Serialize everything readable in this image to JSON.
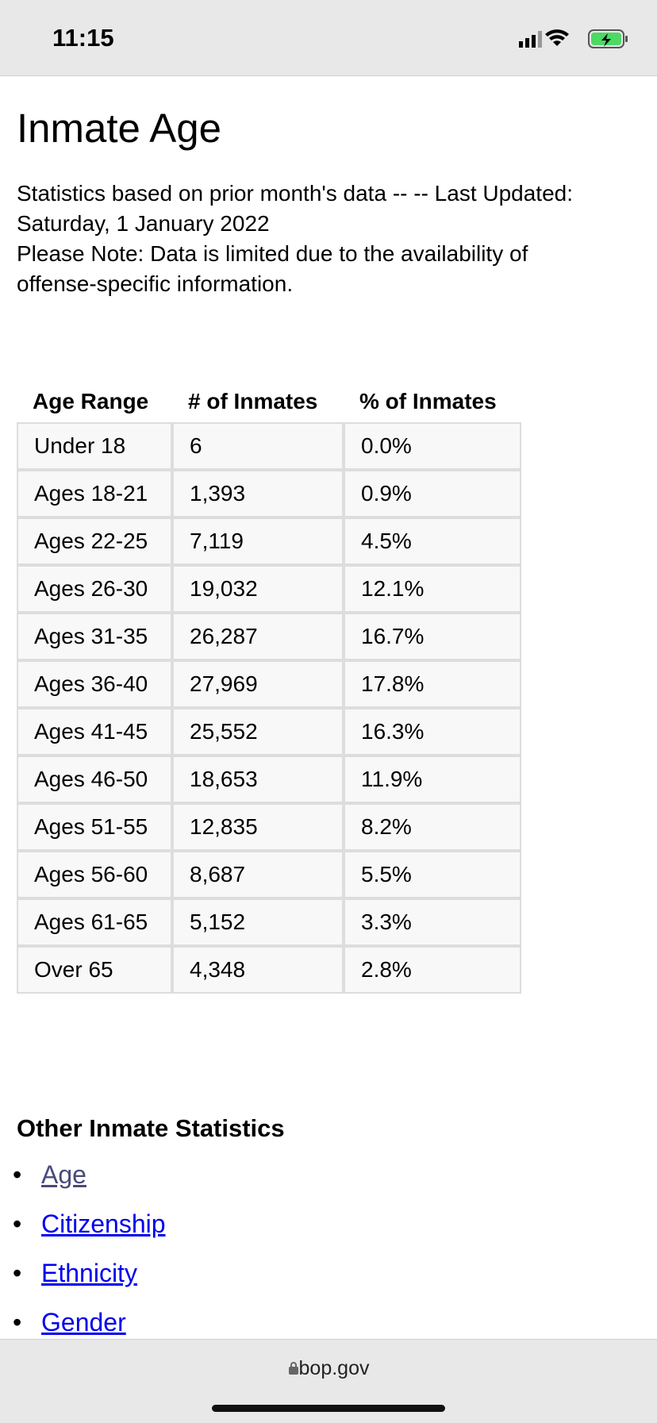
{
  "status_bar": {
    "time": "11:15"
  },
  "header": {
    "title": "Inmate Age"
  },
  "intro": {
    "lines": [
      "Statistics based on prior month's data -- -- Last Updated:",
      "Saturday, 1 January 2022",
      "Please Note: Data is limited due to the availability of",
      "offense-specific information."
    ]
  },
  "table": {
    "header": [
      "Age Range",
      "# of Inmates",
      "% of Inmates"
    ],
    "rows": [
      [
        "Under 18",
        "6",
        "0.0%"
      ],
      [
        "Ages 18-21",
        "1,393",
        "0.9%"
      ],
      [
        "Ages 22-25",
        "7,119",
        "4.5%"
      ],
      [
        "Ages 26-30",
        "19,032",
        "12.1%"
      ],
      [
        "Ages 31-35",
        "26,287",
        "16.7%"
      ],
      [
        "Ages 36-40",
        "27,969",
        "17.8%"
      ],
      [
        "Ages 41-45",
        "25,552",
        "16.3%"
      ],
      [
        "Ages 46-50",
        "18,653",
        "11.9%"
      ],
      [
        "Ages 51-55",
        "12,835",
        "8.2%"
      ],
      [
        "Ages 56-60",
        "8,687",
        "5.5%"
      ],
      [
        "Ages 61-65",
        "5,152",
        "3.3%"
      ],
      [
        "Over 65",
        "4,348",
        "2.8%"
      ]
    ]
  },
  "other_stats": {
    "title": "Other Inmate Statistics",
    "links": [
      "Age",
      "Citizenship",
      "Ethnicity",
      "Gender"
    ]
  },
  "browser": {
    "url": "bop.gov"
  }
}
